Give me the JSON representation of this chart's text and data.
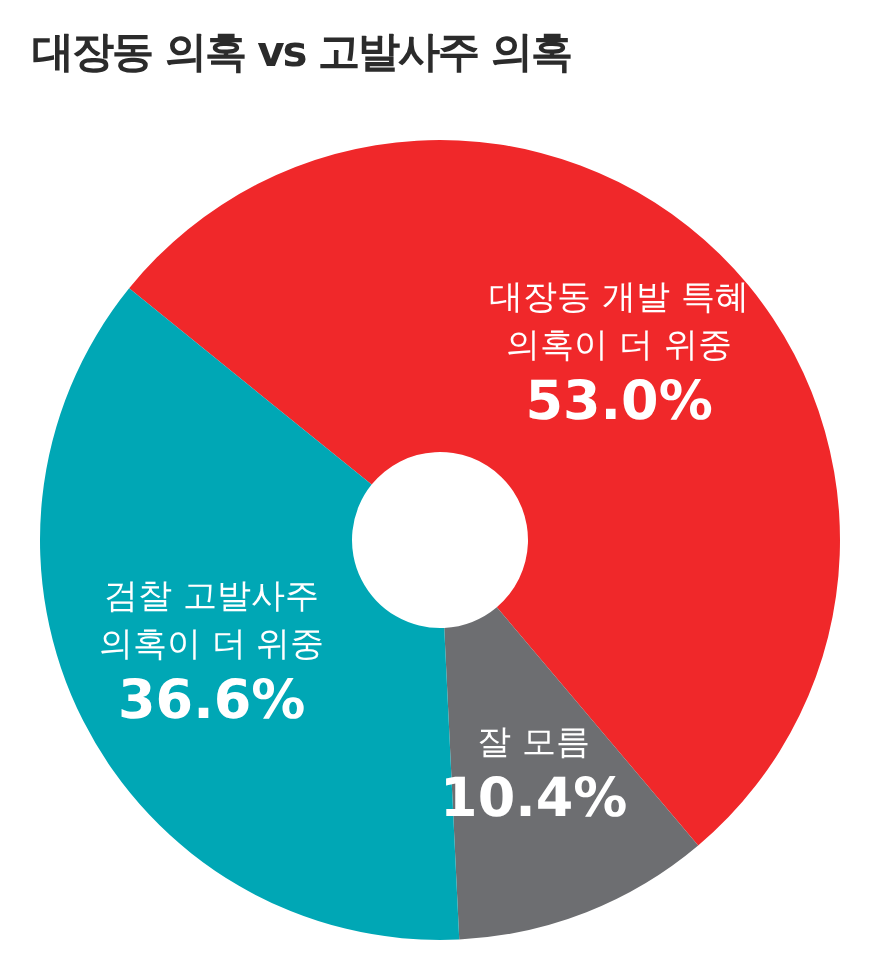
{
  "chart_data": {
    "type": "donut",
    "title": "대장동 의혹 vs 고발사주 의혹",
    "categories": [
      "대장동 개발 특혜 의혹이 더 위중",
      "잘 모름",
      "검찰 고발사주 의혹이 더 위중"
    ],
    "values": [
      53.0,
      10.4,
      36.6
    ],
    "colors": [
      "#f0282a",
      "#6d6e71",
      "#00a7b5"
    ],
    "value_labels": [
      "53.0%",
      "10.4%",
      "36.6%"
    ],
    "legend": false
  }
}
